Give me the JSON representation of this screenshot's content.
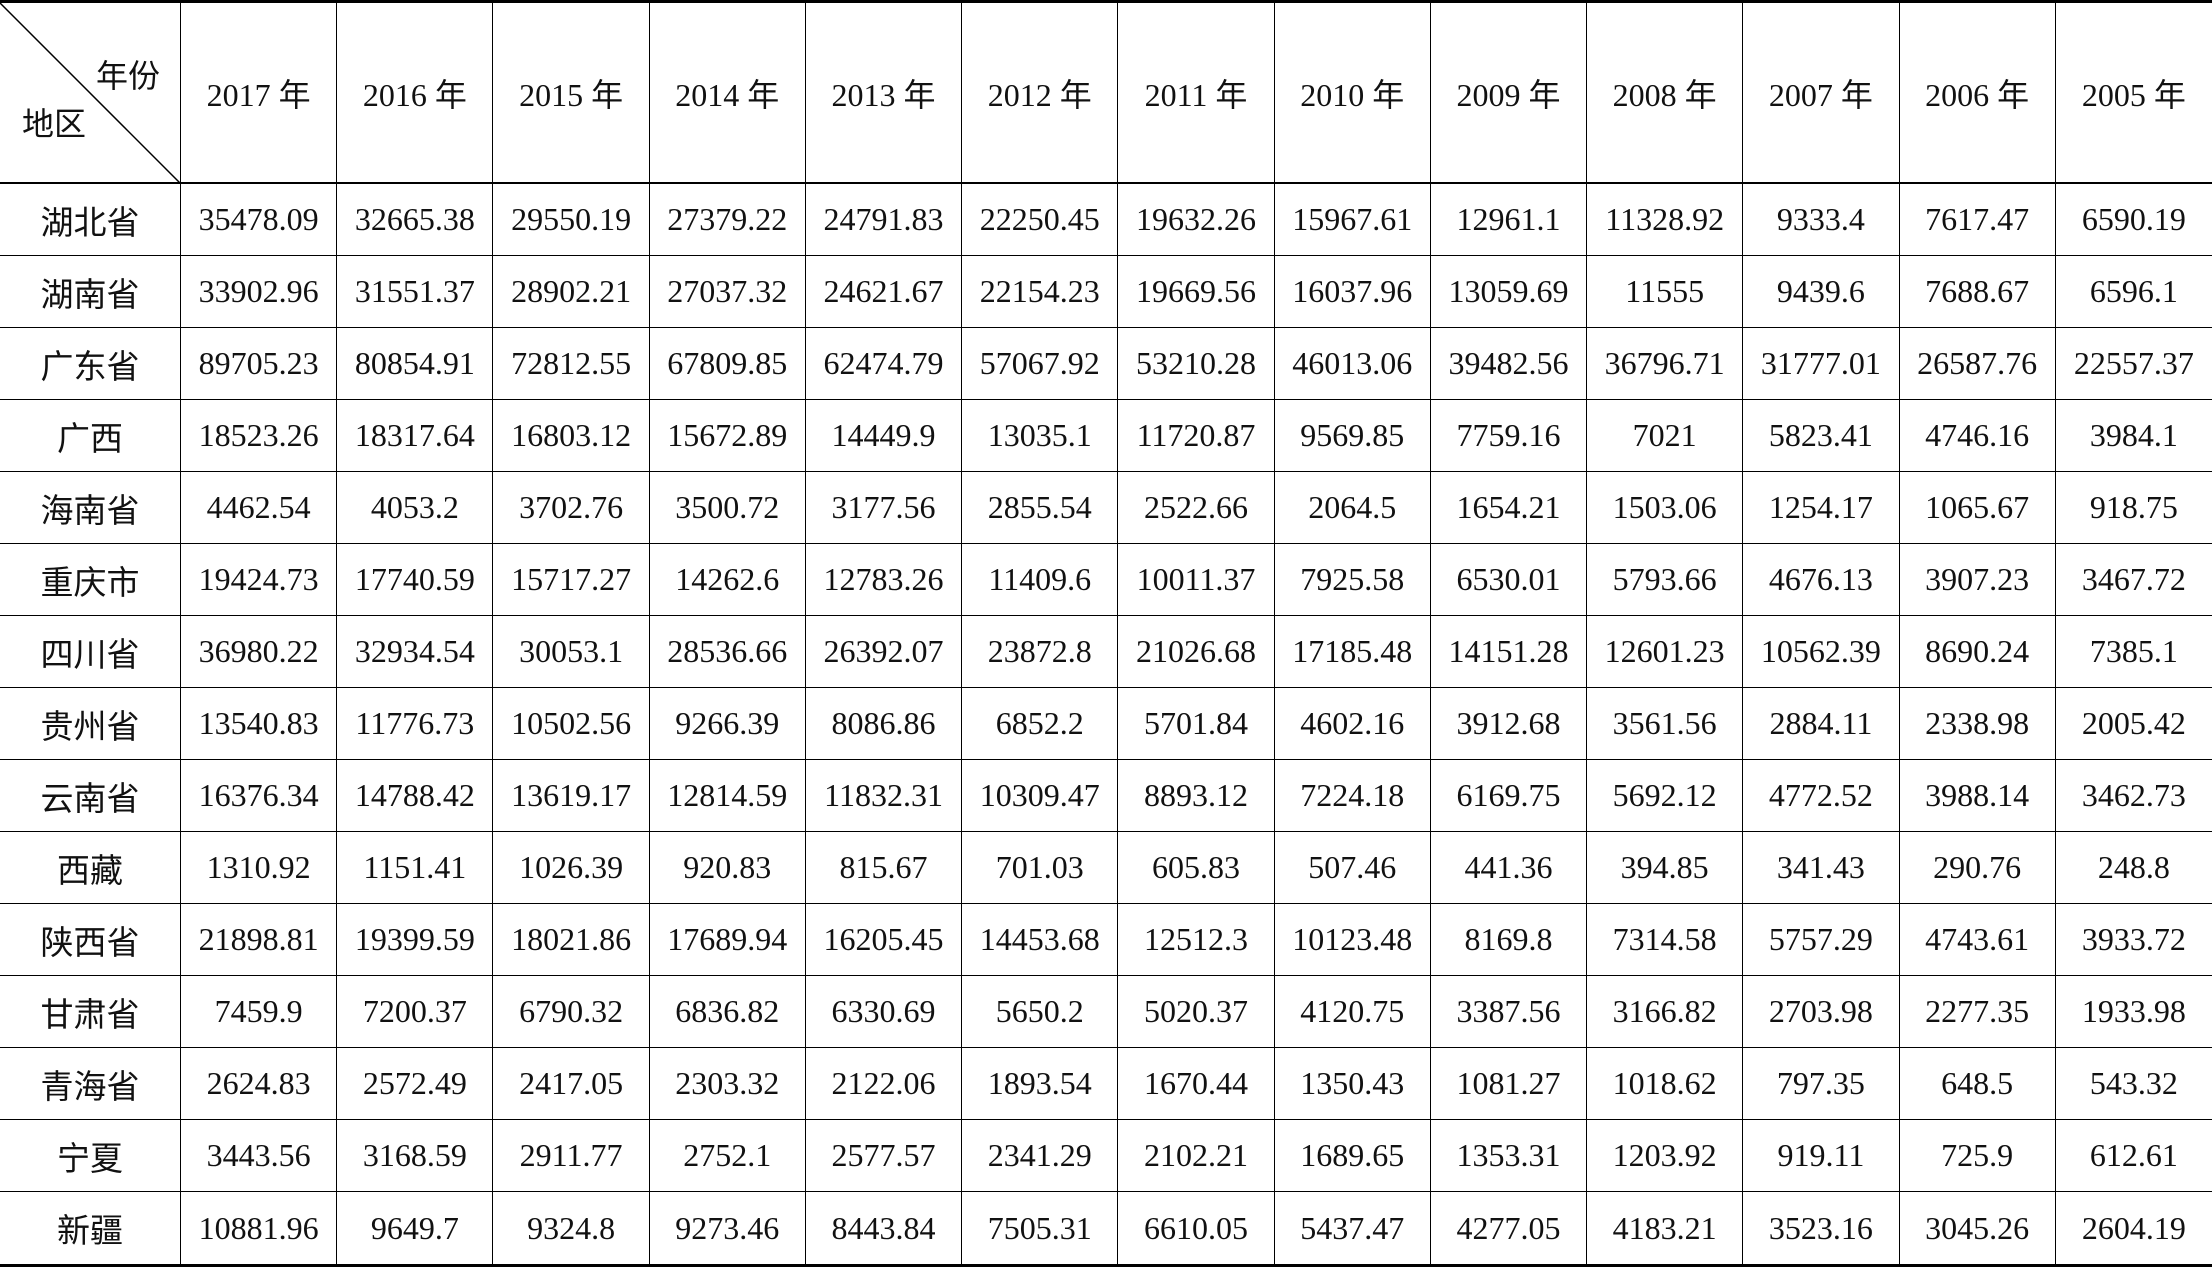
{
  "table": {
    "corner": {
      "column_header": "年份",
      "row_header": "地区"
    },
    "columns": [
      "2017 年",
      "2016 年",
      "2015 年",
      "2014 年",
      "2013 年",
      "2012 年",
      "2011 年",
      "2010 年",
      "2009 年",
      "2008 年",
      "2007 年",
      "2006 年",
      "2005 年"
    ],
    "rows": [
      {
        "region": "湖北省",
        "values": [
          "35478.09",
          "32665.38",
          "29550.19",
          "27379.22",
          "24791.83",
          "22250.45",
          "19632.26",
          "15967.61",
          "12961.1",
          "11328.92",
          "9333.4",
          "7617.47",
          "6590.19"
        ]
      },
      {
        "region": "湖南省",
        "values": [
          "33902.96",
          "31551.37",
          "28902.21",
          "27037.32",
          "24621.67",
          "22154.23",
          "19669.56",
          "16037.96",
          "13059.69",
          "11555",
          "9439.6",
          "7688.67",
          "6596.1"
        ]
      },
      {
        "region": "广东省",
        "values": [
          "89705.23",
          "80854.91",
          "72812.55",
          "67809.85",
          "62474.79",
          "57067.92",
          "53210.28",
          "46013.06",
          "39482.56",
          "36796.71",
          "31777.01",
          "26587.76",
          "22557.37"
        ]
      },
      {
        "region": "广西",
        "values": [
          "18523.26",
          "18317.64",
          "16803.12",
          "15672.89",
          "14449.9",
          "13035.1",
          "11720.87",
          "9569.85",
          "7759.16",
          "7021",
          "5823.41",
          "4746.16",
          "3984.1"
        ]
      },
      {
        "region": "海南省",
        "values": [
          "4462.54",
          "4053.2",
          "3702.76",
          "3500.72",
          "3177.56",
          "2855.54",
          "2522.66",
          "2064.5",
          "1654.21",
          "1503.06",
          "1254.17",
          "1065.67",
          "918.75"
        ]
      },
      {
        "region": "重庆市",
        "values": [
          "19424.73",
          "17740.59",
          "15717.27",
          "14262.6",
          "12783.26",
          "11409.6",
          "10011.37",
          "7925.58",
          "6530.01",
          "5793.66",
          "4676.13",
          "3907.23",
          "3467.72"
        ]
      },
      {
        "region": "四川省",
        "values": [
          "36980.22",
          "32934.54",
          "30053.1",
          "28536.66",
          "26392.07",
          "23872.8",
          "21026.68",
          "17185.48",
          "14151.28",
          "12601.23",
          "10562.39",
          "8690.24",
          "7385.1"
        ]
      },
      {
        "region": "贵州省",
        "values": [
          "13540.83",
          "11776.73",
          "10502.56",
          "9266.39",
          "8086.86",
          "6852.2",
          "5701.84",
          "4602.16",
          "3912.68",
          "3561.56",
          "2884.11",
          "2338.98",
          "2005.42"
        ]
      },
      {
        "region": "云南省",
        "values": [
          "16376.34",
          "14788.42",
          "13619.17",
          "12814.59",
          "11832.31",
          "10309.47",
          "8893.12",
          "7224.18",
          "6169.75",
          "5692.12",
          "4772.52",
          "3988.14",
          "3462.73"
        ]
      },
      {
        "region": "西藏",
        "values": [
          "1310.92",
          "1151.41",
          "1026.39",
          "920.83",
          "815.67",
          "701.03",
          "605.83",
          "507.46",
          "441.36",
          "394.85",
          "341.43",
          "290.76",
          "248.8"
        ]
      },
      {
        "region": "陕西省",
        "values": [
          "21898.81",
          "19399.59",
          "18021.86",
          "17689.94",
          "16205.45",
          "14453.68",
          "12512.3",
          "10123.48",
          "8169.8",
          "7314.58",
          "5757.29",
          "4743.61",
          "3933.72"
        ]
      },
      {
        "region": "甘肃省",
        "values": [
          "7459.9",
          "7200.37",
          "6790.32",
          "6836.82",
          "6330.69",
          "5650.2",
          "5020.37",
          "4120.75",
          "3387.56",
          "3166.82",
          "2703.98",
          "2277.35",
          "1933.98"
        ]
      },
      {
        "region": "青海省",
        "values": [
          "2624.83",
          "2572.49",
          "2417.05",
          "2303.32",
          "2122.06",
          "1893.54",
          "1670.44",
          "1350.43",
          "1081.27",
          "1018.62",
          "797.35",
          "648.5",
          "543.32"
        ]
      },
      {
        "region": "宁夏",
        "values": [
          "3443.56",
          "3168.59",
          "2911.77",
          "2752.1",
          "2577.57",
          "2341.29",
          "2102.21",
          "1689.65",
          "1353.31",
          "1203.92",
          "919.11",
          "725.9",
          "612.61"
        ]
      },
      {
        "region": "新疆",
        "values": [
          "10881.96",
          "9649.7",
          "9324.8",
          "9273.46",
          "8443.84",
          "7505.31",
          "6610.05",
          "5437.47",
          "4277.05",
          "4183.21",
          "3523.16",
          "3045.26",
          "2604.19"
        ]
      }
    ]
  }
}
